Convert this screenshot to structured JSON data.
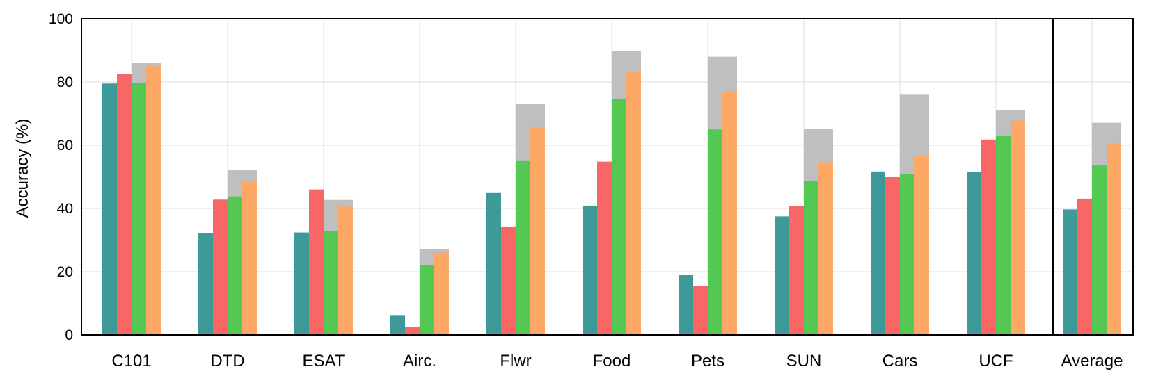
{
  "chart_data": {
    "type": "bar",
    "title": "",
    "xlabel": "",
    "ylabel": "Accuracy (%)",
    "ylim": [
      0,
      100
    ],
    "yticks": [
      0,
      20,
      40,
      60,
      80,
      100
    ],
    "grid": true,
    "legend": "none",
    "categories": [
      "C101",
      "DTD",
      "ESAT",
      "Airc.",
      "Flwr",
      "Food",
      "Pets",
      "SUN",
      "Cars",
      "UCF",
      "Average"
    ],
    "separator_before": "Average",
    "series": [
      {
        "color": "#3d9a98",
        "values": [
          79.5,
          32.3,
          32.4,
          6.3,
          45.1,
          40.9,
          18.9,
          37.5,
          51.7,
          51.5,
          39.7
        ]
      },
      {
        "color": "#f96666",
        "values": [
          82.6,
          42.8,
          46.0,
          2.5,
          34.3,
          54.8,
          15.4,
          40.8,
          50.0,
          61.8,
          43.1
        ]
      },
      {
        "color": "#53c853",
        "values": [
          79.6,
          43.8,
          32.8,
          22.0,
          55.2,
          74.7,
          65.0,
          48.6,
          50.9,
          63.1,
          53.6
        ]
      },
      {
        "color": "#fea865",
        "values": [
          85.0,
          48.5,
          40.6,
          26.0,
          65.7,
          83.2,
          77.1,
          54.6,
          56.7,
          67.8,
          60.5
        ]
      }
    ],
    "upper_bound": {
      "color": "#bfbfbf",
      "values": [
        86.0,
        52.1,
        42.7,
        27.1,
        73.0,
        89.8,
        88.0,
        65.1,
        76.2,
        71.2,
        67.1
      ]
    }
  }
}
